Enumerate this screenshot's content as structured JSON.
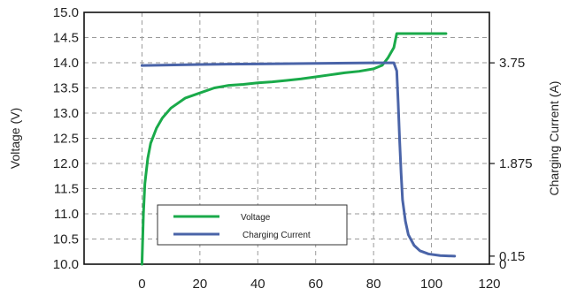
{
  "chart_data": {
    "type": "line",
    "title": "",
    "x_axis": {
      "range": [
        -20,
        120
      ],
      "ticks": [
        0,
        20,
        40,
        60,
        80,
        100,
        120
      ],
      "label": ""
    },
    "y_left": {
      "label": "Voltage (V)",
      "range": [
        10.0,
        15.0
      ],
      "ticks": [
        "10.0",
        "10.5",
        "11.0",
        "11.5",
        "12.0",
        "12.5",
        "13.0",
        "13.5",
        "14.0",
        "14.5",
        "15.0"
      ]
    },
    "y_right": {
      "label": "Charging Current (A)",
      "range": [
        0,
        4.69
      ],
      "ticks": [
        {
          "value": 0,
          "label": "0"
        },
        {
          "value": 0.15,
          "label": "0.15"
        },
        {
          "value": 1.875,
          "label": "1.875"
        },
        {
          "value": 3.75,
          "label": "3.75"
        }
      ]
    },
    "grid": true,
    "legend": {
      "placement": "bottom-left",
      "entries": [
        {
          "name": "Voltage",
          "color": "#1aaa4a"
        },
        {
          "name": "Charging Current",
          "color": "#4a64a8"
        }
      ]
    },
    "series": [
      {
        "name": "Voltage",
        "axis": "left",
        "color": "#1aaa4a",
        "points": [
          [
            0,
            10.0
          ],
          [
            0.5,
            11.0
          ],
          [
            1,
            11.6
          ],
          [
            2,
            12.1
          ],
          [
            3,
            12.4
          ],
          [
            5,
            12.7
          ],
          [
            7,
            12.9
          ],
          [
            10,
            13.1
          ],
          [
            15,
            13.3
          ],
          [
            20,
            13.4
          ],
          [
            25,
            13.5
          ],
          [
            30,
            13.55
          ],
          [
            35,
            13.57
          ],
          [
            40,
            13.6
          ],
          [
            45,
            13.62
          ],
          [
            50,
            13.65
          ],
          [
            55,
            13.68
          ],
          [
            60,
            13.72
          ],
          [
            65,
            13.76
          ],
          [
            70,
            13.8
          ],
          [
            75,
            13.83
          ],
          [
            80,
            13.88
          ],
          [
            83,
            13.95
          ],
          [
            85,
            14.1
          ],
          [
            87,
            14.3
          ],
          [
            88,
            14.58
          ],
          [
            95,
            14.58
          ],
          [
            105,
            14.58
          ]
        ]
      },
      {
        "name": "Charging Current",
        "axis": "right",
        "color": "#4a64a8",
        "points": [
          [
            0,
            3.7
          ],
          [
            20,
            3.72
          ],
          [
            40,
            3.73
          ],
          [
            60,
            3.74
          ],
          [
            80,
            3.75
          ],
          [
            87,
            3.75
          ],
          [
            88,
            3.6
          ],
          [
            88.5,
            3.0
          ],
          [
            89,
            2.3
          ],
          [
            89.5,
            1.7
          ],
          [
            90,
            1.2
          ],
          [
            91,
            0.8
          ],
          [
            92,
            0.55
          ],
          [
            94,
            0.35
          ],
          [
            96,
            0.25
          ],
          [
            99,
            0.19
          ],
          [
            103,
            0.16
          ],
          [
            108,
            0.15
          ]
        ]
      }
    ]
  }
}
